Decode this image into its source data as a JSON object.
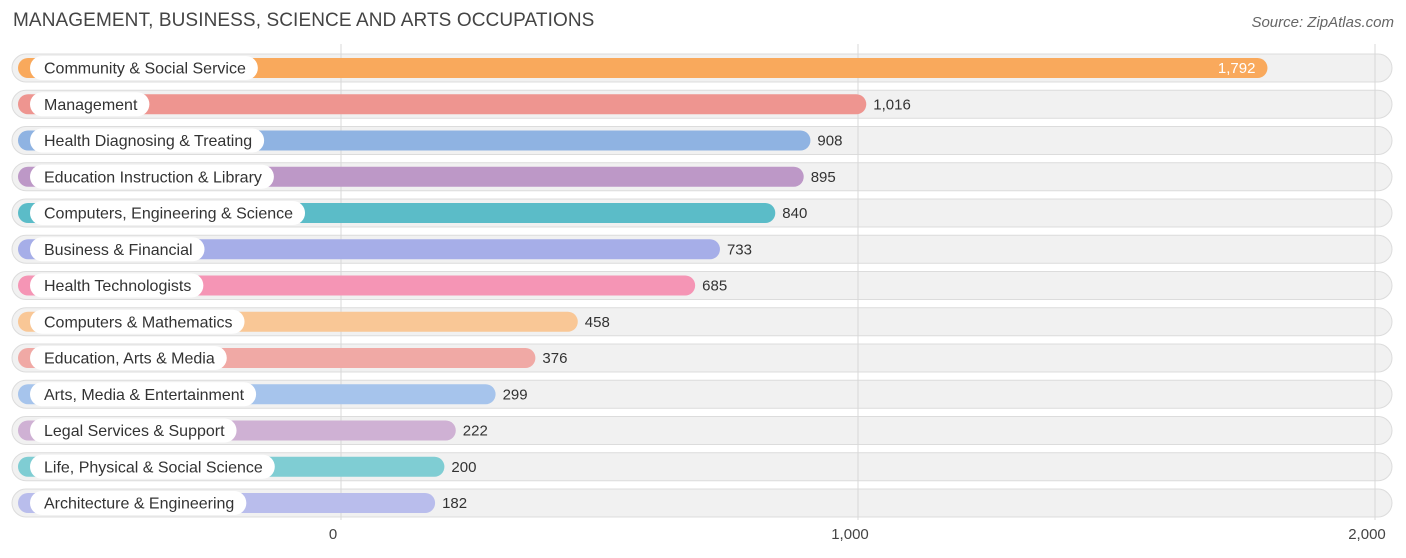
{
  "header": {
    "title": "MANAGEMENT, BUSINESS, SCIENCE AND ARTS OCCUPATIONS",
    "source": "Source: ZipAtlas.com"
  },
  "chart_data": {
    "type": "bar",
    "orientation": "horizontal",
    "title": "MANAGEMENT, BUSINESS, SCIENCE AND ARTS OCCUPATIONS",
    "categories": [
      "Community & Social Service",
      "Management",
      "Health Diagnosing & Treating",
      "Education Instruction & Library",
      "Computers, Engineering & Science",
      "Business & Financial",
      "Health Technologists",
      "Computers & Mathematics",
      "Education, Arts & Media",
      "Arts, Media & Entertainment",
      "Legal Services & Support",
      "Life, Physical & Social Science",
      "Architecture & Engineering"
    ],
    "values": [
      1792,
      1016,
      908,
      895,
      840,
      733,
      685,
      458,
      376,
      299,
      222,
      200,
      182
    ],
    "value_labels": [
      "1,792",
      "1,016",
      "908",
      "895",
      "840",
      "733",
      "685",
      "458",
      "376",
      "299",
      "222",
      "200",
      "182"
    ],
    "colors": [
      "#f9a95c",
      "#ee9590",
      "#8fb3e2",
      "#bd98c7",
      "#5bbcc8",
      "#a6aee8",
      "#f595b5",
      "#f9c796",
      "#f0a9a5",
      "#a6c4ec",
      "#cfb1d4",
      "#7fcdd3",
      "#b9bdec"
    ],
    "xlim": [
      0,
      2000
    ],
    "xticks": [
      0,
      1000,
      2000
    ],
    "xtick_labels": [
      "0",
      "1,000",
      "2,000"
    ],
    "grid": true,
    "legend": "none"
  }
}
